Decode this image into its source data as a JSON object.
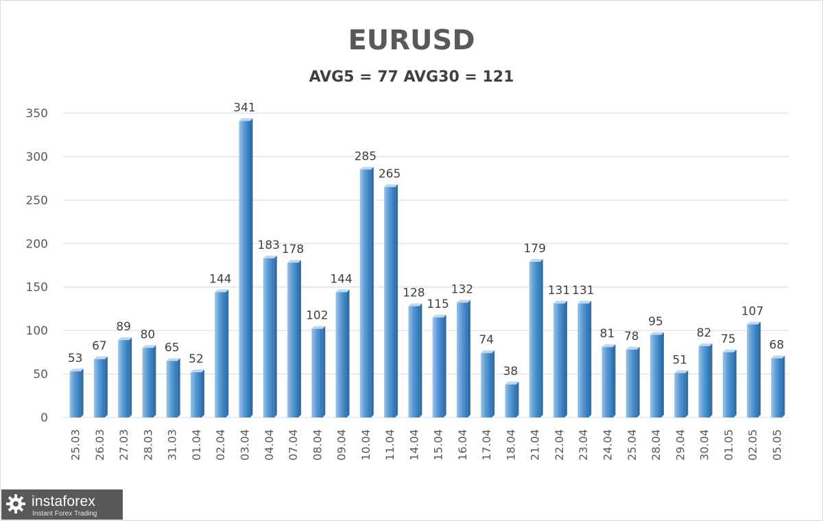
{
  "chart_data": {
    "type": "bar",
    "title": "EURUSD",
    "subtitle": "AVG5 = 77 AVG30 = 121",
    "categories": [
      "25.03",
      "26.03",
      "27.03",
      "28.03",
      "31.03",
      "01.04",
      "02.04",
      "03.04",
      "04.04",
      "07.04",
      "08.04",
      "09.04",
      "10.04",
      "11.04",
      "14.04",
      "15.04",
      "16.04",
      "17.04",
      "18.04",
      "21.04",
      "22.04",
      "23.04",
      "24.04",
      "25.04",
      "28.04",
      "29.04",
      "30.04",
      "01.05",
      "02.05",
      "05.05"
    ],
    "values": [
      53,
      67,
      89,
      80,
      65,
      52,
      144,
      341,
      183,
      178,
      102,
      144,
      285,
      265,
      128,
      115,
      132,
      74,
      38,
      179,
      131,
      131,
      81,
      78,
      95,
      51,
      82,
      75,
      107,
      68
    ],
    "ylim": [
      0,
      350
    ],
    "yticks": [
      0,
      50,
      100,
      150,
      200,
      250,
      300,
      350
    ],
    "grid": true,
    "data_labels": true,
    "colors": {
      "bar": "#5b9bd5",
      "bar_dark": "#2e75b6",
      "grid": "#d9d9d9",
      "text": "#595959"
    }
  },
  "logo": {
    "name": "instaforex",
    "tagline": "Instant Forex Trading"
  }
}
